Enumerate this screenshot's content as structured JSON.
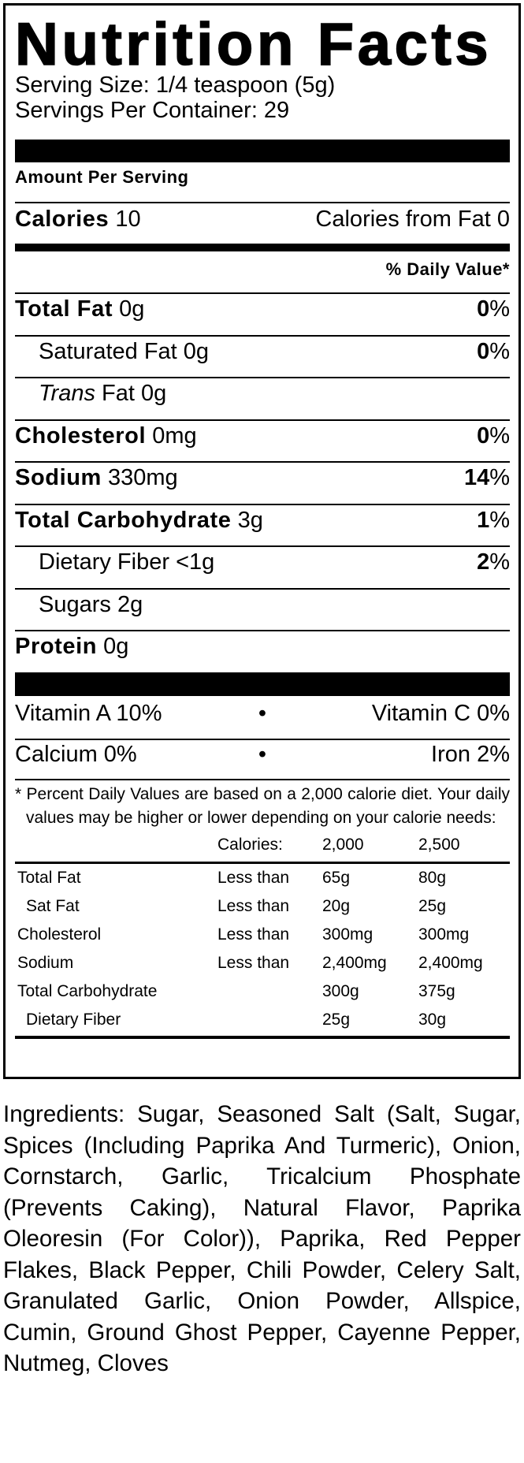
{
  "title": "Nutrition Facts",
  "serving_size": "Serving Size: 1/4 teaspoon (5g)",
  "servings_per_container": "Servings Per Container: 29",
  "amount_per_serving": "Amount Per Serving",
  "calories": {
    "label": "Calories",
    "value": "10",
    "from_fat": "Calories from Fat 0"
  },
  "daily_value_header": "% Daily Value*",
  "nutrients": [
    {
      "label": "Total Fat",
      "amount": "0g",
      "pct": "0",
      "pct_sign": "%"
    },
    {
      "label": "Saturated Fat",
      "amount": "0g",
      "pct": "0",
      "pct_sign": "%"
    },
    {
      "label": "Trans",
      "label_suffix": "Fat",
      "amount": "0g"
    },
    {
      "label": "Cholesterol",
      "amount": "0mg",
      "pct": "0",
      "pct_sign": "%"
    },
    {
      "label": "Sodium",
      "amount": "330mg",
      "pct": "14",
      "pct_sign": "%"
    },
    {
      "label": "Total Carbohydrate",
      "amount": "3g",
      "pct": "1",
      "pct_sign": "%"
    },
    {
      "label": "Dietary Fiber",
      "amount": "<1g",
      "pct": "2",
      "pct_sign": "%"
    },
    {
      "label": "Sugars",
      "amount": "2g"
    },
    {
      "label": "Protein",
      "amount": "0g"
    }
  ],
  "vitamins": [
    {
      "left": "Vitamin A 10%",
      "bullet": "•",
      "right": "Vitamin C 0%"
    },
    {
      "left": "Calcium 0%",
      "bullet": "•",
      "right": "Iron 2%"
    }
  ],
  "footnote": "* Percent Daily Values are based on a 2,000 calorie diet. Your daily values may be higher or lower depending on your calorie needs:",
  "dv_table": {
    "header": [
      "",
      "Calories:",
      "2,000",
      "2,500"
    ],
    "rows": [
      [
        "Total Fat",
        "Less than",
        "65g",
        "80g"
      ],
      [
        "Sat Fat",
        "Less than",
        "20g",
        "25g"
      ],
      [
        "Cholesterol",
        "Less than",
        "300mg",
        "300mg"
      ],
      [
        "Sodium",
        "Less than",
        "2,400mg",
        "2,400mg"
      ],
      [
        "Total Carbohydrate",
        "",
        "300g",
        "375g"
      ],
      [
        "Dietary Fiber",
        "",
        "25g",
        "30g"
      ]
    ]
  },
  "ingredients": "Ingredients: Sugar, Seasoned Salt (Salt, Sugar, Spices (Including Paprika And Turmeric), Onion, Cornstarch, Garlic, Tricalcium Phosphate (Prevents Caking), Natural Flavor, Paprika Oleoresin (For Color)), Paprika, Red Pepper Flakes, Black Pepper, Chili Powder, Celery Salt, Granulated Garlic, Onion Powder, Allspice, Cumin, Ground Ghost Pepper, Cayenne Pepper, Nutmeg, Cloves"
}
